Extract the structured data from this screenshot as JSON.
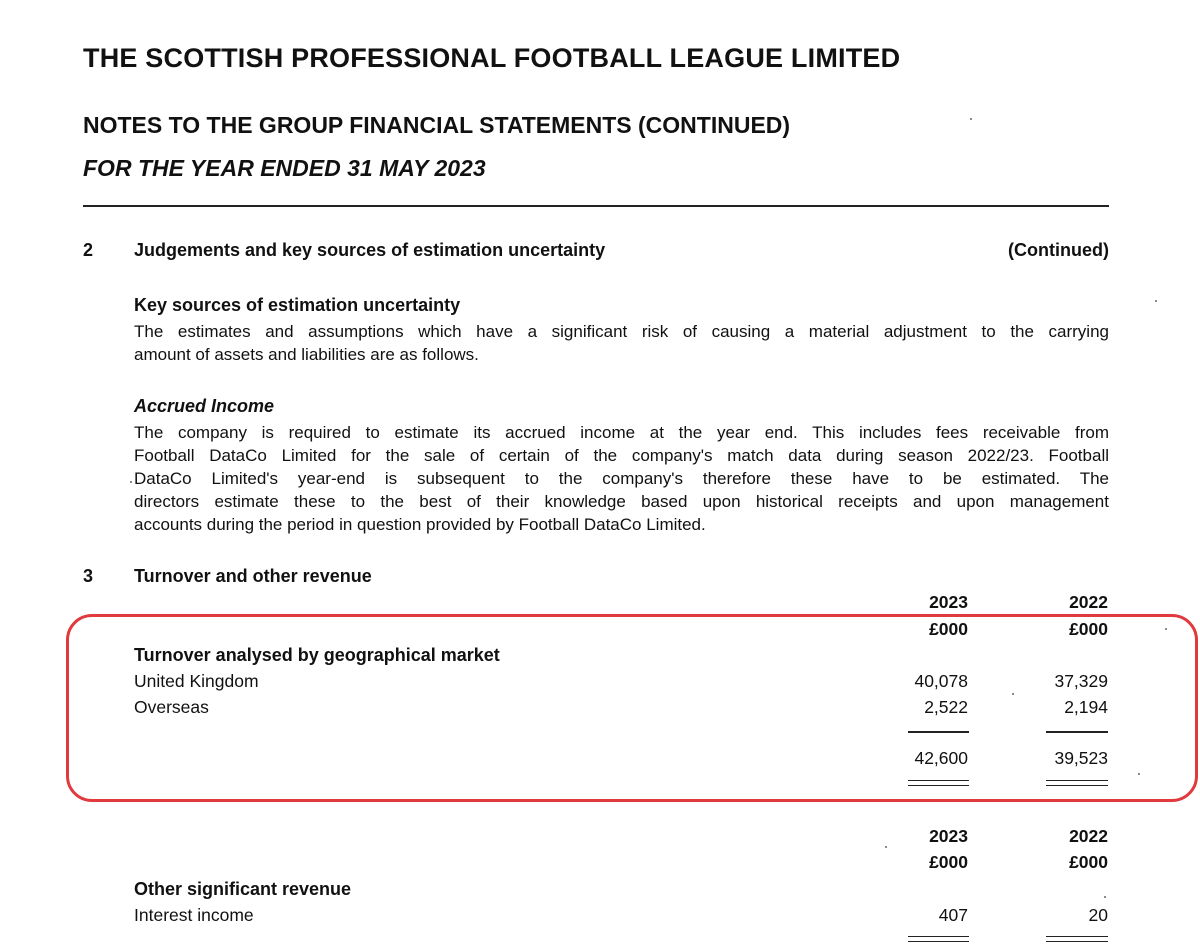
{
  "header": {
    "company": "THE SCOTTISH PROFESSIONAL FOOTBALL LEAGUE LIMITED",
    "notes_title": "NOTES TO THE GROUP FINANCIAL STATEMENTS (CONTINUED)",
    "period": "FOR THE YEAR ENDED 31 MAY 2023"
  },
  "note2": {
    "number": "2",
    "heading": "Judgements and key sources of estimation uncertainty",
    "continued": "(Continued)",
    "key_sources": {
      "heading": "Key sources of estimation uncertainty",
      "lines": [
        "The estimates and assumptions which have a significant risk of causing a material adjustment to the carrying",
        "amount of assets and liabilities are as follows."
      ]
    },
    "accrued_income": {
      "heading": "Accrued Income",
      "lines": [
        "The company is required to estimate its accrued income at the year end.  This includes fees receivable from",
        "Football DataCo Limited for the sale of certain of the company's match data during season 2022/23. Football",
        "DataCo Limited's year-end is subsequent to the company's therefore these have to be estimated. The",
        "directors estimate these to the best of their knowledge based upon historical receipts and upon management",
        "accounts during the period in question provided by Football DataCo Limited."
      ]
    }
  },
  "note3": {
    "number": "3",
    "heading": "Turnover and other revenue",
    "table1": {
      "years": [
        "2023",
        "2022"
      ],
      "units": [
        "£000",
        "£000"
      ],
      "heading": "Turnover analysed by geographical market",
      "rows": [
        {
          "label": "United Kingdom",
          "values": [
            "40,078",
            "37,329"
          ]
        },
        {
          "label": "Overseas",
          "values": [
            "2,522",
            "2,194"
          ]
        }
      ],
      "totals": [
        "42,600",
        "39,523"
      ]
    },
    "table2": {
      "years": [
        "2023",
        "2022"
      ],
      "units": [
        "£000",
        "£000"
      ],
      "heading": "Other significant revenue",
      "rows": [
        {
          "label": "Interest income",
          "values": [
            "407",
            "20"
          ]
        }
      ]
    }
  },
  "highlight_color": "#e0393e"
}
